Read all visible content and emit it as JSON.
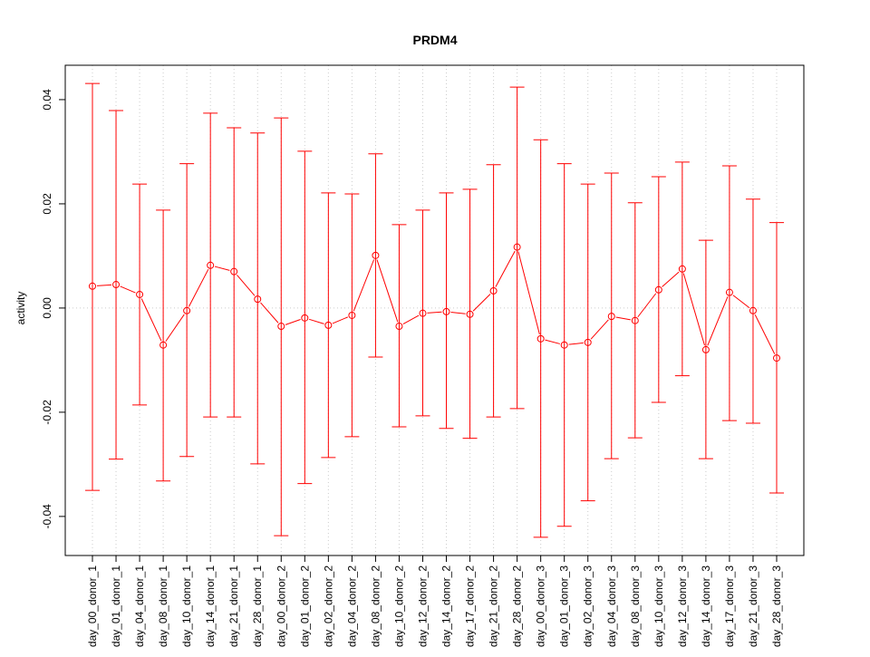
{
  "chart_data": {
    "type": "line",
    "title": "PRDM4",
    "xlabel": "",
    "ylabel": "activity",
    "ylim": [
      -0.0475,
      0.0466
    ],
    "yticks": [
      -0.04,
      -0.02,
      0.0,
      0.02,
      0.04
    ],
    "ytick_labels": [
      "-0.04",
      "-0.02",
      "0.00",
      "0.02",
      "0.04"
    ],
    "grid": "vertical dotted at each category, horizontal dotted at 0",
    "color": "#ff0000",
    "categories": [
      "day_00_donor_1",
      "day_01_donor_1",
      "day_04_donor_1",
      "day_08_donor_1",
      "day_10_donor_1",
      "day_14_donor_1",
      "day_21_donor_1",
      "day_28_donor_1",
      "day_00_donor_2",
      "day_01_donor_2",
      "day_02_donor_2",
      "day_04_donor_2",
      "day_08_donor_2",
      "day_10_donor_2",
      "day_12_donor_2",
      "day_14_donor_2",
      "day_17_donor_2",
      "day_21_donor_2",
      "day_28_donor_2",
      "day_00_donor_3",
      "day_01_donor_3",
      "day_02_donor_3",
      "day_04_donor_3",
      "day_08_donor_3",
      "day_10_donor_3",
      "day_12_donor_3",
      "day_14_donor_3",
      "day_17_donor_3",
      "day_21_donor_3",
      "day_28_donor_3"
    ],
    "values": [
      0.0042,
      0.0045,
      0.0026,
      -0.0071,
      -0.0005,
      0.0082,
      0.007,
      0.0017,
      -0.0035,
      -0.0019,
      -0.0033,
      -0.0014,
      0.0101,
      -0.0035,
      -0.001,
      -0.0007,
      -0.0012,
      0.0033,
      0.0117,
      -0.0059,
      -0.0071,
      -0.0066,
      -0.0016,
      -0.0024,
      0.0035,
      0.0075,
      -0.008,
      0.003,
      -0.0005,
      -0.0096
    ],
    "upper": [
      0.0431,
      0.0379,
      0.0238,
      0.0188,
      0.0277,
      0.0374,
      0.0346,
      0.0336,
      0.0365,
      0.0301,
      0.0221,
      0.0219,
      0.0296,
      0.016,
      0.0188,
      0.0221,
      0.0228,
      0.0275,
      0.0424,
      0.0323,
      0.0277,
      0.0238,
      0.0259,
      0.0202,
      0.0252,
      0.028,
      0.013,
      0.0273,
      0.0209,
      0.0164
    ],
    "lower": [
      -0.035,
      -0.029,
      -0.0186,
      -0.0332,
      -0.0285,
      -0.0209,
      -0.0209,
      -0.0299,
      -0.0437,
      -0.0337,
      -0.0287,
      -0.0247,
      -0.0094,
      -0.0228,
      -0.0207,
      -0.0231,
      -0.025,
      -0.0209,
      -0.0193,
      -0.044,
      -0.0419,
      -0.037,
      -0.0289,
      -0.0249,
      -0.0181,
      -0.013,
      -0.0289,
      -0.0216,
      -0.0221,
      -0.0355
    ]
  }
}
